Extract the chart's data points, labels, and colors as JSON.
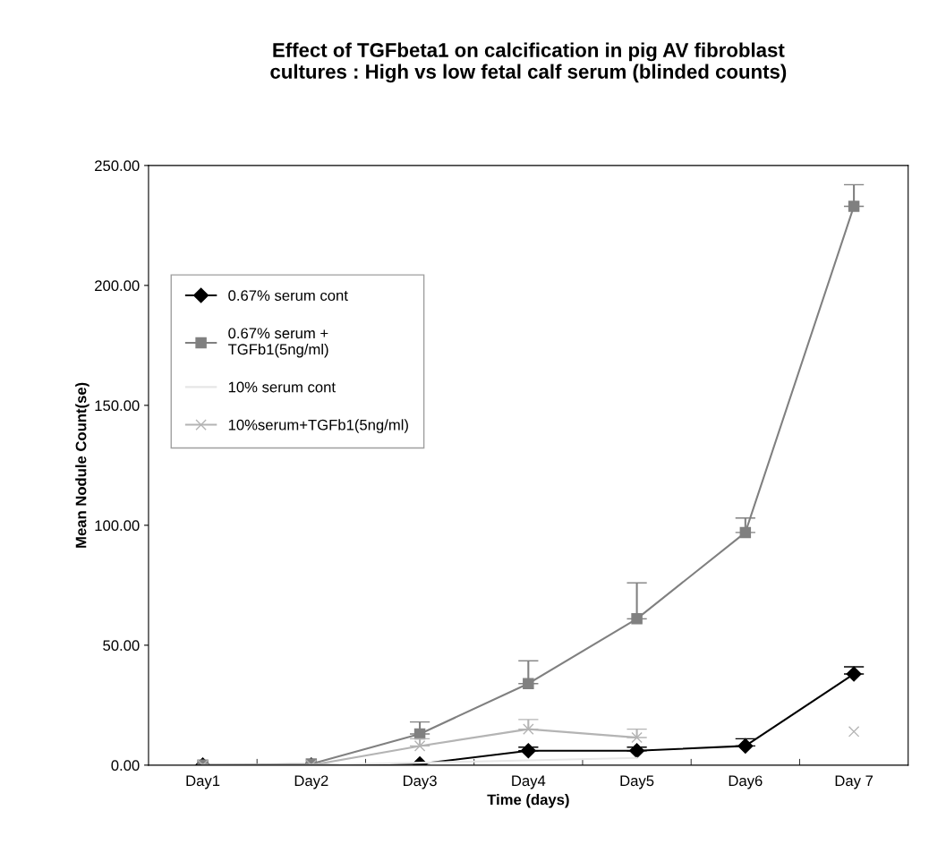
{
  "chart_data": {
    "type": "line",
    "title": "Effect of TGFbeta1 on calcification in pig AV fibroblast\ncultures : High vs low fetal calf serum (blinded counts)",
    "xlabel": "Time (days)",
    "ylabel": "Mean Nodule Count(se)",
    "categories": [
      "Day1",
      "Day2",
      "Day3",
      "Day4",
      "Day5",
      "Day6",
      "Day 7"
    ],
    "series": [
      {
        "name": "0.67% serum cont",
        "color": "#000000",
        "marker": "diamond",
        "values": [
          0,
          0,
          0.5,
          6,
          6,
          8,
          38
        ],
        "errors": [
          null,
          null,
          null,
          [
            6,
            7.5
          ],
          [
            6,
            7.5
          ],
          [
            8,
            11
          ],
          [
            38,
            41
          ]
        ]
      },
      {
        "name": "0.67% serum +\nTGFb1(5ng/ml)",
        "color": "#808080",
        "marker": "square",
        "values": [
          0,
          0.5,
          13,
          34,
          61,
          97,
          233
        ],
        "errors": [
          null,
          null,
          [
            13,
            18
          ],
          [
            34,
            43.5
          ],
          [
            61,
            76
          ],
          [
            97,
            103
          ],
          [
            233,
            242
          ]
        ]
      },
      {
        "name": "10% serum cont",
        "color": "#e6e6e6",
        "marker": "none",
        "values": [
          0,
          0,
          1,
          2,
          3,
          null,
          null
        ]
      },
      {
        "name": "10%serum+TGFb1(5ng/ml)",
        "color": "#b4b4b4",
        "marker": "cross",
        "values": [
          0,
          0,
          8,
          15,
          11.5,
          null,
          14
        ],
        "errors": [
          null,
          null,
          [
            8,
            11
          ],
          [
            15,
            19
          ],
          [
            11.5,
            15
          ],
          null,
          null
        ]
      }
    ],
    "ylim": [
      0,
      250
    ],
    "yticks": [
      {
        "value": 0,
        "label": "0.00"
      },
      {
        "value": 50,
        "label": "50.00"
      },
      {
        "value": 100,
        "label": "100.00"
      },
      {
        "value": 150,
        "label": "150.00"
      },
      {
        "value": 200,
        "label": "200.00"
      },
      {
        "value": 250,
        "label": "250.00"
      }
    ],
    "grid": false,
    "legend": "top left",
    "line_style": "solid"
  }
}
